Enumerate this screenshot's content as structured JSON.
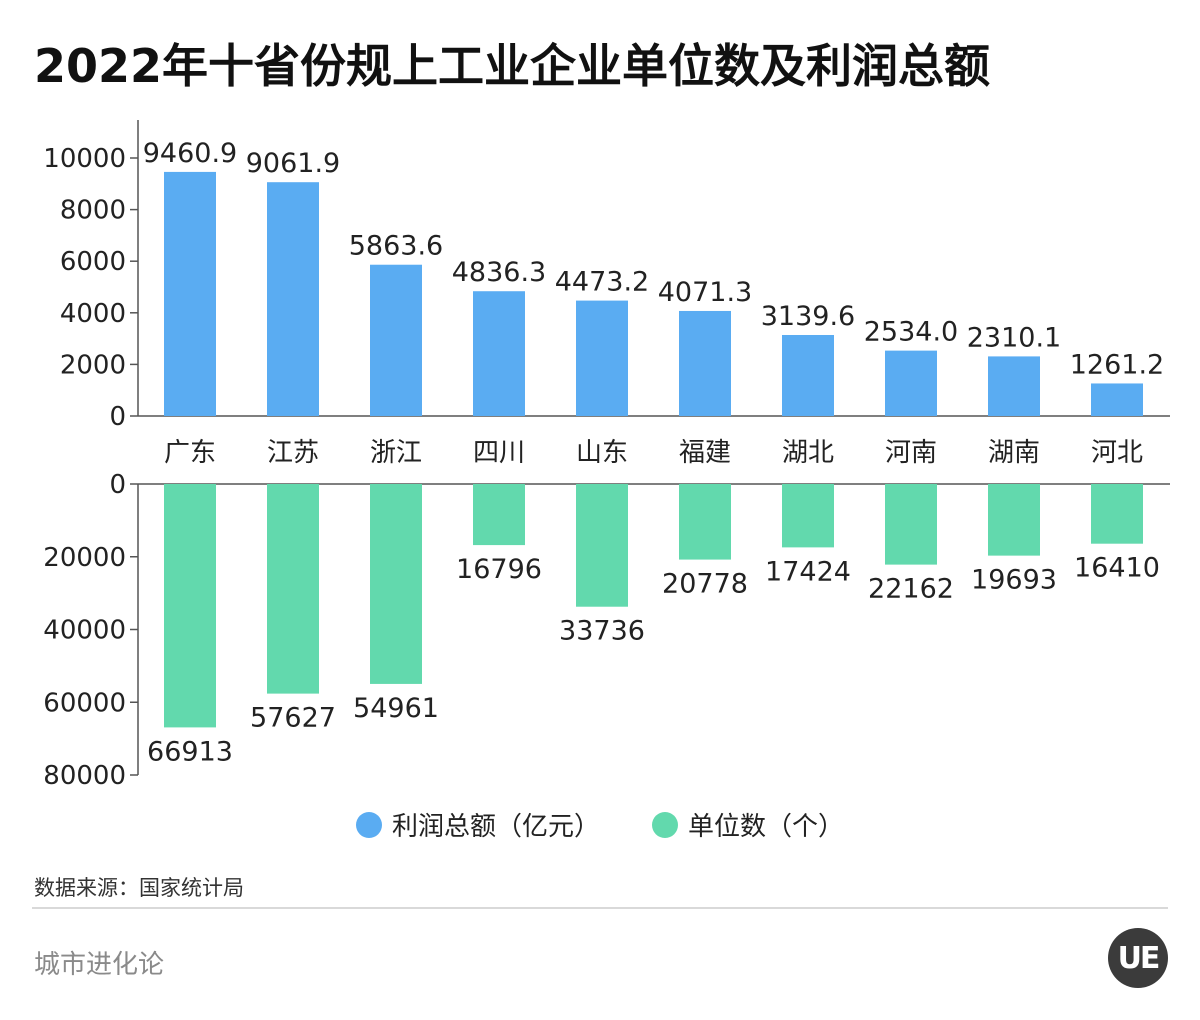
{
  "title": "2022年十省份规上工业企业单位数及利润总额",
  "chart_data": {
    "type": "bar",
    "categories": [
      "广东",
      "江苏",
      "浙江",
      "四川",
      "山东",
      "福建",
      "湖北",
      "河南",
      "湖南",
      "河北"
    ],
    "series": [
      {
        "name": "利润总额（亿元）",
        "color": "#5aacf2",
        "values": [
          9460.9,
          9061.9,
          5863.6,
          4836.3,
          4473.2,
          4071.3,
          3139.6,
          2534.0,
          2310.1,
          1261.2
        ],
        "labels": [
          "9460.9",
          "9061.9",
          "5863.6",
          "4836.3",
          "4473.2",
          "4071.3",
          "3139.6",
          "2534.0",
          "2310.1",
          "1261.2"
        ],
        "axis_range": [
          0,
          10000
        ],
        "ticks": [
          "0",
          "2000",
          "4000",
          "6000",
          "8000",
          "10000"
        ],
        "tick_values": [
          0,
          2000,
          4000,
          6000,
          8000,
          10000
        ]
      },
      {
        "name": "单位数（个）",
        "color": "#62d9ad",
        "values": [
          66913,
          57627,
          54961,
          16796,
          33736,
          20778,
          17424,
          22162,
          19693,
          16410
        ],
        "labels": [
          "66913",
          "57627",
          "54961",
          "16796",
          "33736",
          "20778",
          "17424",
          "22162",
          "19693",
          "16410"
        ],
        "axis_range": [
          0,
          80000
        ],
        "ticks": [
          "0",
          "20000",
          "40000",
          "60000",
          "80000"
        ],
        "tick_values": [
          0,
          20000,
          40000,
          60000,
          80000
        ],
        "direction": "downward"
      }
    ]
  },
  "legend": {
    "profit": {
      "label": "利润总额（亿元）",
      "color": "#5aacf2"
    },
    "units": {
      "label": "单位数（个）",
      "color": "#62d9ad"
    }
  },
  "source": "数据来源：国家统计局",
  "brand": "城市进化论",
  "logo": "UE"
}
